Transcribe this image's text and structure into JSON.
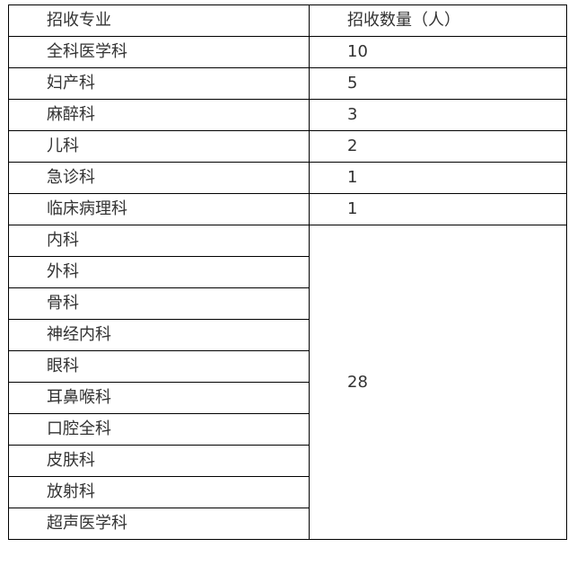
{
  "table": {
    "headers": [
      "招收专业",
      "招收数量（人）"
    ],
    "rows": [
      {
        "major": "全科医学科",
        "count": "10"
      },
      {
        "major": "妇产科",
        "count": "5"
      },
      {
        "major": "麻醉科",
        "count": "3"
      },
      {
        "major": "儿科",
        "count": "2"
      },
      {
        "major": "急诊科",
        "count": "1"
      },
      {
        "major": "临床病理科",
        "count": "1"
      }
    ],
    "group": {
      "majors": [
        "内科",
        "外科",
        "骨科",
        "神经内科",
        "眼科",
        "耳鼻喉科",
        "口腔全科",
        "皮肤科",
        "放射科",
        "超声医学科"
      ],
      "count": "28"
    }
  }
}
